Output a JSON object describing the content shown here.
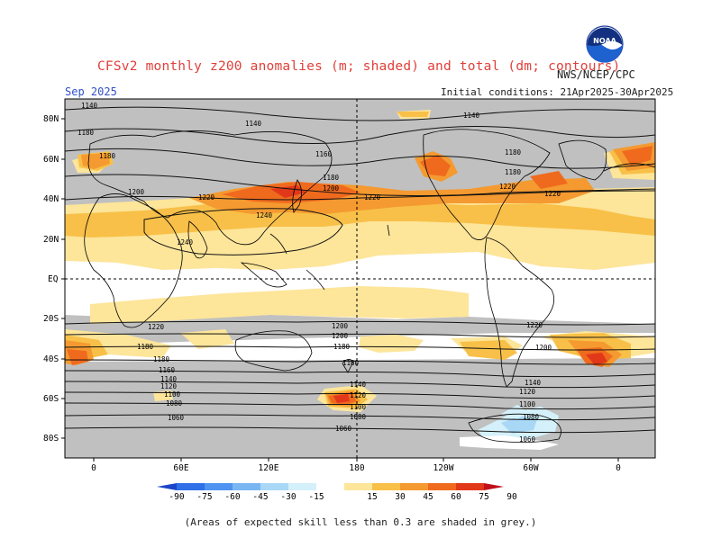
{
  "header": {
    "title": "CFSv2 monthly z200 anomalies (m; shaded) and total (dm; contours)",
    "source": "NWS/NCEP/CPC",
    "valid_month": "Sep 2025",
    "initial_conditions": "Initial conditions: 21Apr2025-30Apr2025",
    "logo_text": "NOAA"
  },
  "map": {
    "lat_labels": [
      "80N",
      "60N",
      "40N",
      "20N",
      "EQ",
      "20S",
      "40S",
      "60S",
      "80S"
    ],
    "lon_labels": [
      "0",
      "60E",
      "120E",
      "180",
      "120W",
      "60W",
      "0"
    ],
    "contour_labels": [
      "1140",
      "1140",
      "1140",
      "1180",
      "1180",
      "1160",
      "1180",
      "1200",
      "1220",
      "1220",
      "1220",
      "1240",
      "1240",
      "1180",
      "1180",
      "1200",
      "1220",
      "1220",
      "1200",
      "1180",
      "1200",
      "1220",
      "1180",
      "1160",
      "1140",
      "1120",
      "1100",
      "1080",
      "1060",
      "1200",
      "1180",
      "1160",
      "1140",
      "1120",
      "1100",
      "1080",
      "1060",
      "1140",
      "1120",
      "1100",
      "1080",
      "1060"
    ]
  },
  "colorbar": {
    "ticks": [
      "-90",
      "-75",
      "-60",
      "-45",
      "-30",
      "-15",
      "15",
      "30",
      "45",
      "60",
      "75",
      "90"
    ],
    "colors": [
      "#1c46c8",
      "#2f6fe8",
      "#4e94f0",
      "#7ab6f2",
      "#a8d8f6",
      "#d4f0fa",
      "#ffffff",
      "#fde59a",
      "#f8c048",
      "#f49a30",
      "#f06a1e",
      "#e2381a",
      "#c0101a"
    ]
  },
  "footnote": "(Areas of expected skill less than 0.3 are shaded in grey.)"
}
